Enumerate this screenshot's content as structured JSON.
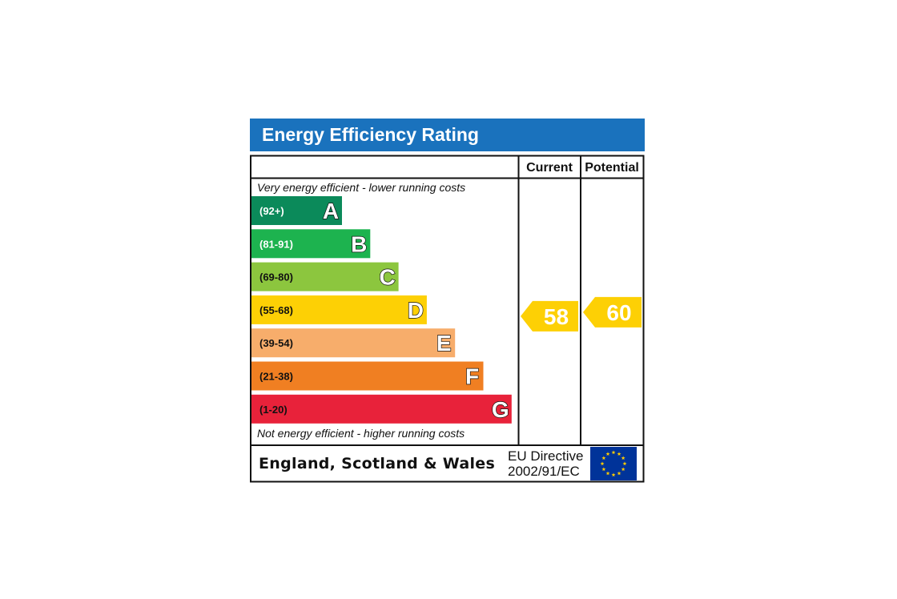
{
  "chart_data": {
    "type": "bar",
    "title": "Energy Efficiency Rating",
    "columns": [
      "Current",
      "Potential"
    ],
    "note_top": "Very energy efficient - lower running costs",
    "note_bottom": "Not energy efficient - higher running costs",
    "bands": [
      {
        "letter": "A",
        "range": "(92+)",
        "color": "#0b8a5a",
        "range_color": "#ffffff"
      },
      {
        "letter": "B",
        "range": "(81-91)",
        "color": "#1db34f",
        "range_color": "#ffffff"
      },
      {
        "letter": "C",
        "range": "(69-80)",
        "color": "#8cc63e",
        "range_color": "#111111"
      },
      {
        "letter": "D",
        "range": "(55-68)",
        "color": "#fdd005",
        "range_color": "#111111"
      },
      {
        "letter": "E",
        "range": "(39-54)",
        "color": "#f7ad6b",
        "range_color": "#111111"
      },
      {
        "letter": "F",
        "range": "(21-38)",
        "color": "#f07f22",
        "range_color": "#111111"
      },
      {
        "letter": "G",
        "range": "(1-20)",
        "color": "#e8223a",
        "range_color": "#111111"
      }
    ],
    "current": {
      "value": 58,
      "band": "D",
      "color": "#fdd005"
    },
    "potential": {
      "value": 60,
      "band": "D",
      "color": "#fdd005"
    },
    "region": "England, Scotland & Wales",
    "directive_line1": "EU Directive",
    "directive_line2": "2002/91/EC",
    "title_bar_color": "#1a72bd",
    "eu_flag_color": "#003399",
    "eu_star_color": "#ffcc00"
  }
}
